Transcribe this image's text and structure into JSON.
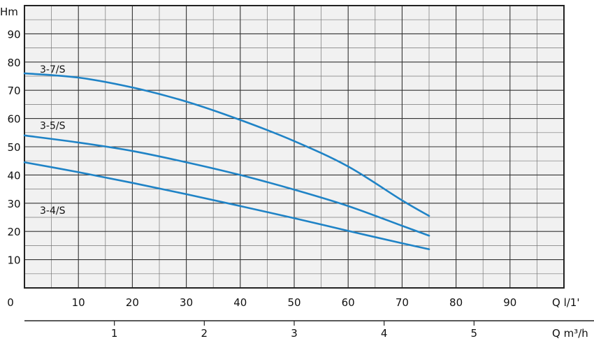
{
  "chart_data": {
    "type": "line",
    "ylabel": "Hm",
    "xlabel_primary": "Q l/1'",
    "xlabel_secondary": "Q m³/h",
    "xlim": [
      0,
      100
    ],
    "ylim": [
      0,
      100
    ],
    "x_ticks": [
      0,
      10,
      20,
      30,
      40,
      50,
      60,
      70,
      80,
      90
    ],
    "y_ticks": [
      10,
      20,
      30,
      40,
      50,
      60,
      70,
      80,
      90
    ],
    "secondary_ticks": [
      1,
      2,
      3,
      4,
      5
    ],
    "grid": true,
    "series": [
      {
        "name": "3-7/S",
        "x": [
          0,
          10,
          20,
          30,
          40,
          50,
          60,
          70,
          75
        ],
        "y": [
          76,
          74.5,
          71,
          66,
          59.5,
          52,
          43,
          31,
          25.5
        ]
      },
      {
        "name": "3-5/S",
        "x": [
          0,
          10,
          20,
          30,
          40,
          50,
          60,
          70,
          75
        ],
        "y": [
          54,
          51.5,
          48.5,
          44.5,
          40,
          34.8,
          29,
          22,
          18.5
        ]
      },
      {
        "name": "3-4/S",
        "x": [
          0,
          10,
          20,
          30,
          40,
          50,
          60,
          70,
          75
        ],
        "y": [
          44.5,
          41,
          37.2,
          33.2,
          29,
          24.7,
          20.2,
          15.8,
          13.7
        ]
      }
    ]
  },
  "colors": {
    "curve": "#1f83c6",
    "grid": "#333333",
    "plot_bg": "#f1f1f1"
  }
}
